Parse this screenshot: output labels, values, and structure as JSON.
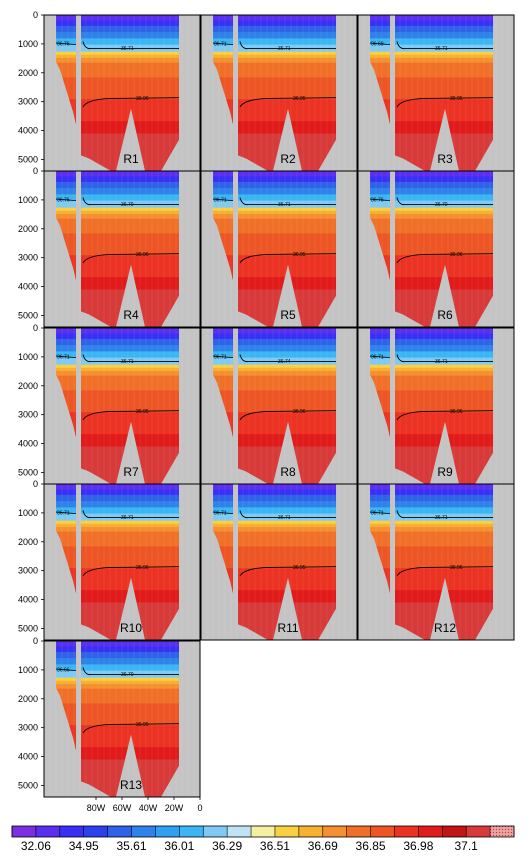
{
  "chart_data": {
    "type": "heatmap",
    "panels": [
      {
        "label": "R1",
        "contours": [
          "36.76",
          "36.71",
          "36.96"
        ]
      },
      {
        "label": "R2",
        "contours": [
          "36.71",
          "36.71",
          "36.95"
        ]
      },
      {
        "label": "R3",
        "contours": [
          "36.69",
          "36.71",
          "36.95"
        ]
      },
      {
        "label": "R4",
        "contours": [
          "36.76",
          "36.70",
          "36.96"
        ]
      },
      {
        "label": "R5",
        "contours": [
          "36.71",
          "36.71",
          "36.95"
        ]
      },
      {
        "label": "R6",
        "contours": [
          "36.76",
          "36.70",
          "36.96"
        ]
      },
      {
        "label": "R7",
        "contours": [
          "36.71",
          "36.71",
          "36.95"
        ]
      },
      {
        "label": "R8",
        "contours": [
          "36.71",
          "36.74",
          "36.96"
        ]
      },
      {
        "label": "R9",
        "contours": [
          "36.71",
          "36.71",
          "36.96"
        ]
      },
      {
        "label": "R10",
        "contours": [
          "36.71",
          "36.71",
          "36.96"
        ]
      },
      {
        "label": "R11",
        "contours": [
          "36.71",
          "36.71",
          "36.95"
        ]
      },
      {
        "label": "R12",
        "contours": [
          "36.71",
          "36.71",
          "36.96"
        ]
      },
      {
        "label": "R13",
        "contours": [
          "36.66",
          "36.70",
          "36.95"
        ]
      }
    ],
    "y_ticks": [
      "0",
      "1000",
      "2000",
      "3000",
      "4000",
      "5000"
    ],
    "x_ticks": [
      "80W",
      "60W",
      "40W",
      "20W",
      "0"
    ],
    "colorbar": {
      "colors": [
        "#7b2fe0",
        "#5a2ff0",
        "#3a30f5",
        "#2c40ee",
        "#2f62e8",
        "#2f82ea",
        "#2ea0f0",
        "#3ab6f5",
        "#7ecaf5",
        "#bfe3f5",
        "#f5f0a0",
        "#f8d040",
        "#f8b030",
        "#f49030",
        "#f07028",
        "#ee5524",
        "#ec3222",
        "#e11a1a",
        "#c21414",
        "#d83a3a",
        "#f0a0a0"
      ],
      "labels": [
        "32.06",
        "34.95",
        "35.61",
        "36.01",
        "36.29",
        "36.51",
        "36.69",
        "36.85",
        "36.98",
        "37.1"
      ]
    }
  }
}
